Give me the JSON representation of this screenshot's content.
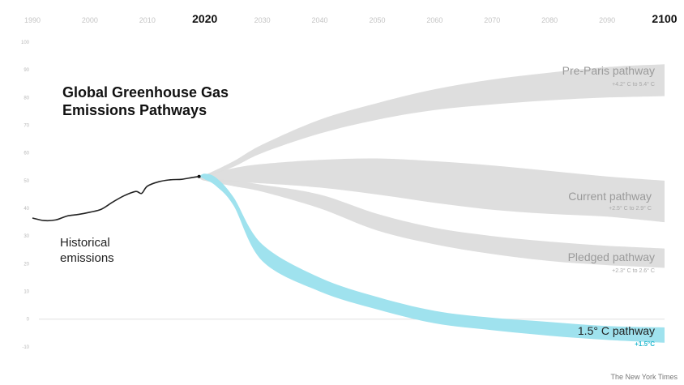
{
  "chart_data": {
    "type": "area",
    "title": "Global Greenhouse Gas\nEmissions Pathways",
    "source": "The New York Times",
    "x_ticks": [
      {
        "year": 1990,
        "label": "1990",
        "bold": false
      },
      {
        "year": 2000,
        "label": "2000",
        "bold": false
      },
      {
        "year": 2010,
        "label": "2010",
        "bold": false
      },
      {
        "year": 2020,
        "label": "2020",
        "bold": true
      },
      {
        "year": 2030,
        "label": "2030",
        "bold": false
      },
      {
        "year": 2040,
        "label": "2040",
        "bold": false
      },
      {
        "year": 2050,
        "label": "2050",
        "bold": false
      },
      {
        "year": 2060,
        "label": "2060",
        "bold": false
      },
      {
        "year": 2070,
        "label": "2070",
        "bold": false
      },
      {
        "year": 2080,
        "label": "2080",
        "bold": false
      },
      {
        "year": 2090,
        "label": "2090",
        "bold": false
      },
      {
        "year": 2100,
        "label": "2100",
        "bold": true
      }
    ],
    "y_ticks": [
      -10,
      0,
      10,
      20,
      30,
      40,
      50,
      60,
      70,
      80,
      90,
      100
    ],
    "xlim": [
      1990,
      2100
    ],
    "ylim": [
      -15,
      100
    ],
    "historical": {
      "label": "Historical\nemissions",
      "color": "#222222",
      "points": [
        [
          1990,
          36.5
        ],
        [
          1992,
          35.6
        ],
        [
          1994,
          35.8
        ],
        [
          1996,
          37.2
        ],
        [
          1998,
          37.8
        ],
        [
          2000,
          38.6
        ],
        [
          2002,
          39.7
        ],
        [
          2004,
          42.3
        ],
        [
          2006,
          44.6
        ],
        [
          2008,
          46.1
        ],
        [
          2009,
          45.4
        ],
        [
          2010,
          48.0
        ],
        [
          2012,
          49.6
        ],
        [
          2014,
          50.3
        ],
        [
          2016,
          50.5
        ],
        [
          2018,
          51.2
        ],
        [
          2019,
          51.5
        ]
      ]
    },
    "series": [
      {
        "name": "Pre-Paris pathway",
        "sublabel": "+4.2° C to 5.4° C",
        "color": "#dcdcdc",
        "upper": [
          [
            2019,
            51.5
          ],
          [
            2020,
            52
          ],
          [
            2025,
            57
          ],
          [
            2030,
            63
          ],
          [
            2040,
            72
          ],
          [
            2050,
            78
          ],
          [
            2060,
            83
          ],
          [
            2070,
            86.5
          ],
          [
            2080,
            89
          ],
          [
            2090,
            91
          ],
          [
            2100,
            92
          ]
        ],
        "lower": [
          [
            2019,
            51.5
          ],
          [
            2020,
            51
          ],
          [
            2025,
            55
          ],
          [
            2030,
            60
          ],
          [
            2040,
            67
          ],
          [
            2050,
            72
          ],
          [
            2060,
            75.5
          ],
          [
            2070,
            77.5
          ],
          [
            2080,
            79
          ],
          [
            2090,
            80
          ],
          [
            2100,
            80.5
          ]
        ]
      },
      {
        "name": "Current pathway",
        "sublabel": "+2.5° C to 2.9° C",
        "color": "#dcdcdc",
        "upper": [
          [
            2019,
            51.5
          ],
          [
            2020,
            52
          ],
          [
            2025,
            54.5
          ],
          [
            2030,
            56
          ],
          [
            2040,
            57.5
          ],
          [
            2050,
            58
          ],
          [
            2060,
            57
          ],
          [
            2070,
            55.5
          ],
          [
            2080,
            53.5
          ],
          [
            2090,
            51.5
          ],
          [
            2100,
            50
          ]
        ],
        "lower": [
          [
            2019,
            51.5
          ],
          [
            2020,
            50
          ],
          [
            2025,
            49.5
          ],
          [
            2030,
            49
          ],
          [
            2040,
            47.5
          ],
          [
            2050,
            45
          ],
          [
            2060,
            42
          ],
          [
            2070,
            39.5
          ],
          [
            2080,
            38
          ],
          [
            2090,
            37
          ],
          [
            2100,
            35
          ]
        ]
      },
      {
        "name": "Pledged pathway",
        "sublabel": "+2.3° C to 2.6° C",
        "color": "#dcdcdc",
        "upper": [
          [
            2019,
            51.5
          ],
          [
            2020,
            51
          ],
          [
            2025,
            50
          ],
          [
            2030,
            48.5
          ],
          [
            2040,
            45
          ],
          [
            2050,
            38
          ],
          [
            2060,
            33
          ],
          [
            2070,
            30
          ],
          [
            2080,
            28
          ],
          [
            2090,
            26.5
          ],
          [
            2100,
            25.5
          ]
        ],
        "lower": [
          [
            2019,
            51.5
          ],
          [
            2020,
            50
          ],
          [
            2025,
            48
          ],
          [
            2030,
            46
          ],
          [
            2040,
            40
          ],
          [
            2050,
            32
          ],
          [
            2060,
            27
          ],
          [
            2070,
            23.5
          ],
          [
            2080,
            21
          ],
          [
            2090,
            19.5
          ],
          [
            2100,
            18.5
          ]
        ]
      },
      {
        "name": "1.5° C pathway",
        "sublabel": "+1.5°C",
        "color": "#9fe2ee",
        "upper": [
          [
            2019,
            51.5
          ],
          [
            2020,
            52.5
          ],
          [
            2022,
            51
          ],
          [
            2025,
            44
          ],
          [
            2030,
            27
          ],
          [
            2040,
            15
          ],
          [
            2050,
            8
          ],
          [
            2060,
            3
          ],
          [
            2070,
            0.5
          ],
          [
            2080,
            -1
          ],
          [
            2090,
            -2.5
          ],
          [
            2100,
            -3
          ]
        ],
        "lower": [
          [
            2019,
            51.5
          ],
          [
            2020,
            50.5
          ],
          [
            2022,
            48
          ],
          [
            2025,
            41
          ],
          [
            2030,
            21
          ],
          [
            2040,
            10
          ],
          [
            2050,
            3.5
          ],
          [
            2060,
            -1.5
          ],
          [
            2070,
            -4
          ],
          [
            2080,
            -6
          ],
          [
            2090,
            -7.5
          ],
          [
            2100,
            -8.5
          ]
        ]
      }
    ],
    "grid": false,
    "zero_line": true
  }
}
